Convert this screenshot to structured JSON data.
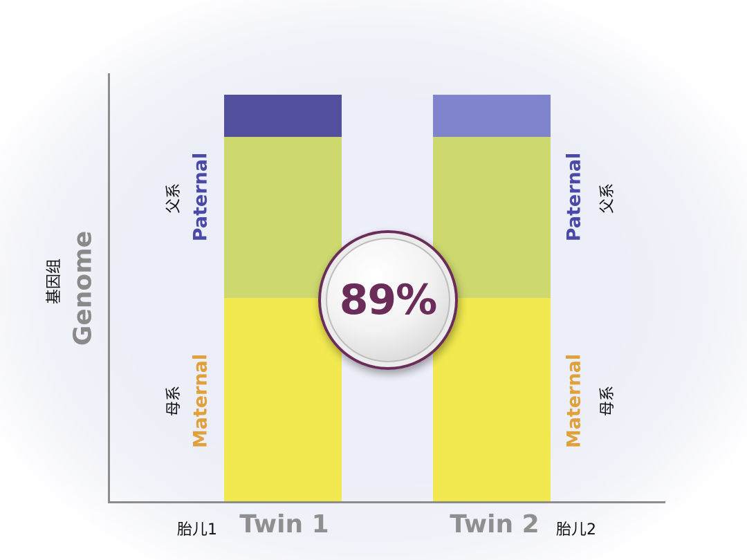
{
  "axis": {
    "ylabel": "Genome",
    "ylabel_cn": "基因组"
  },
  "colors": {
    "paternal_label": "#4a4aa6",
    "maternal_label": "#e0a03a",
    "twin1_top": "#524f9d",
    "twin2_top": "#7f84cc",
    "paternal_segment": "#cdd86e",
    "maternal_segment": "#f1e94f",
    "badge_text": "#6a2c59"
  },
  "twins": [
    {
      "name": "Twin 1",
      "name_cn": "胎儿1",
      "paternal": "Paternal",
      "paternal_cn": "父系",
      "maternal": "Maternal",
      "maternal_cn": "母系"
    },
    {
      "name": "Twin 2",
      "name_cn": "胎儿2",
      "paternal": "Paternal",
      "paternal_cn": "父系",
      "maternal": "Maternal",
      "maternal_cn": "母系"
    }
  ],
  "bar_segments": {
    "top_fraction": 0.103,
    "paternal_fraction": 0.397,
    "maternal_fraction": 0.5
  },
  "badge": {
    "value": "89%"
  }
}
